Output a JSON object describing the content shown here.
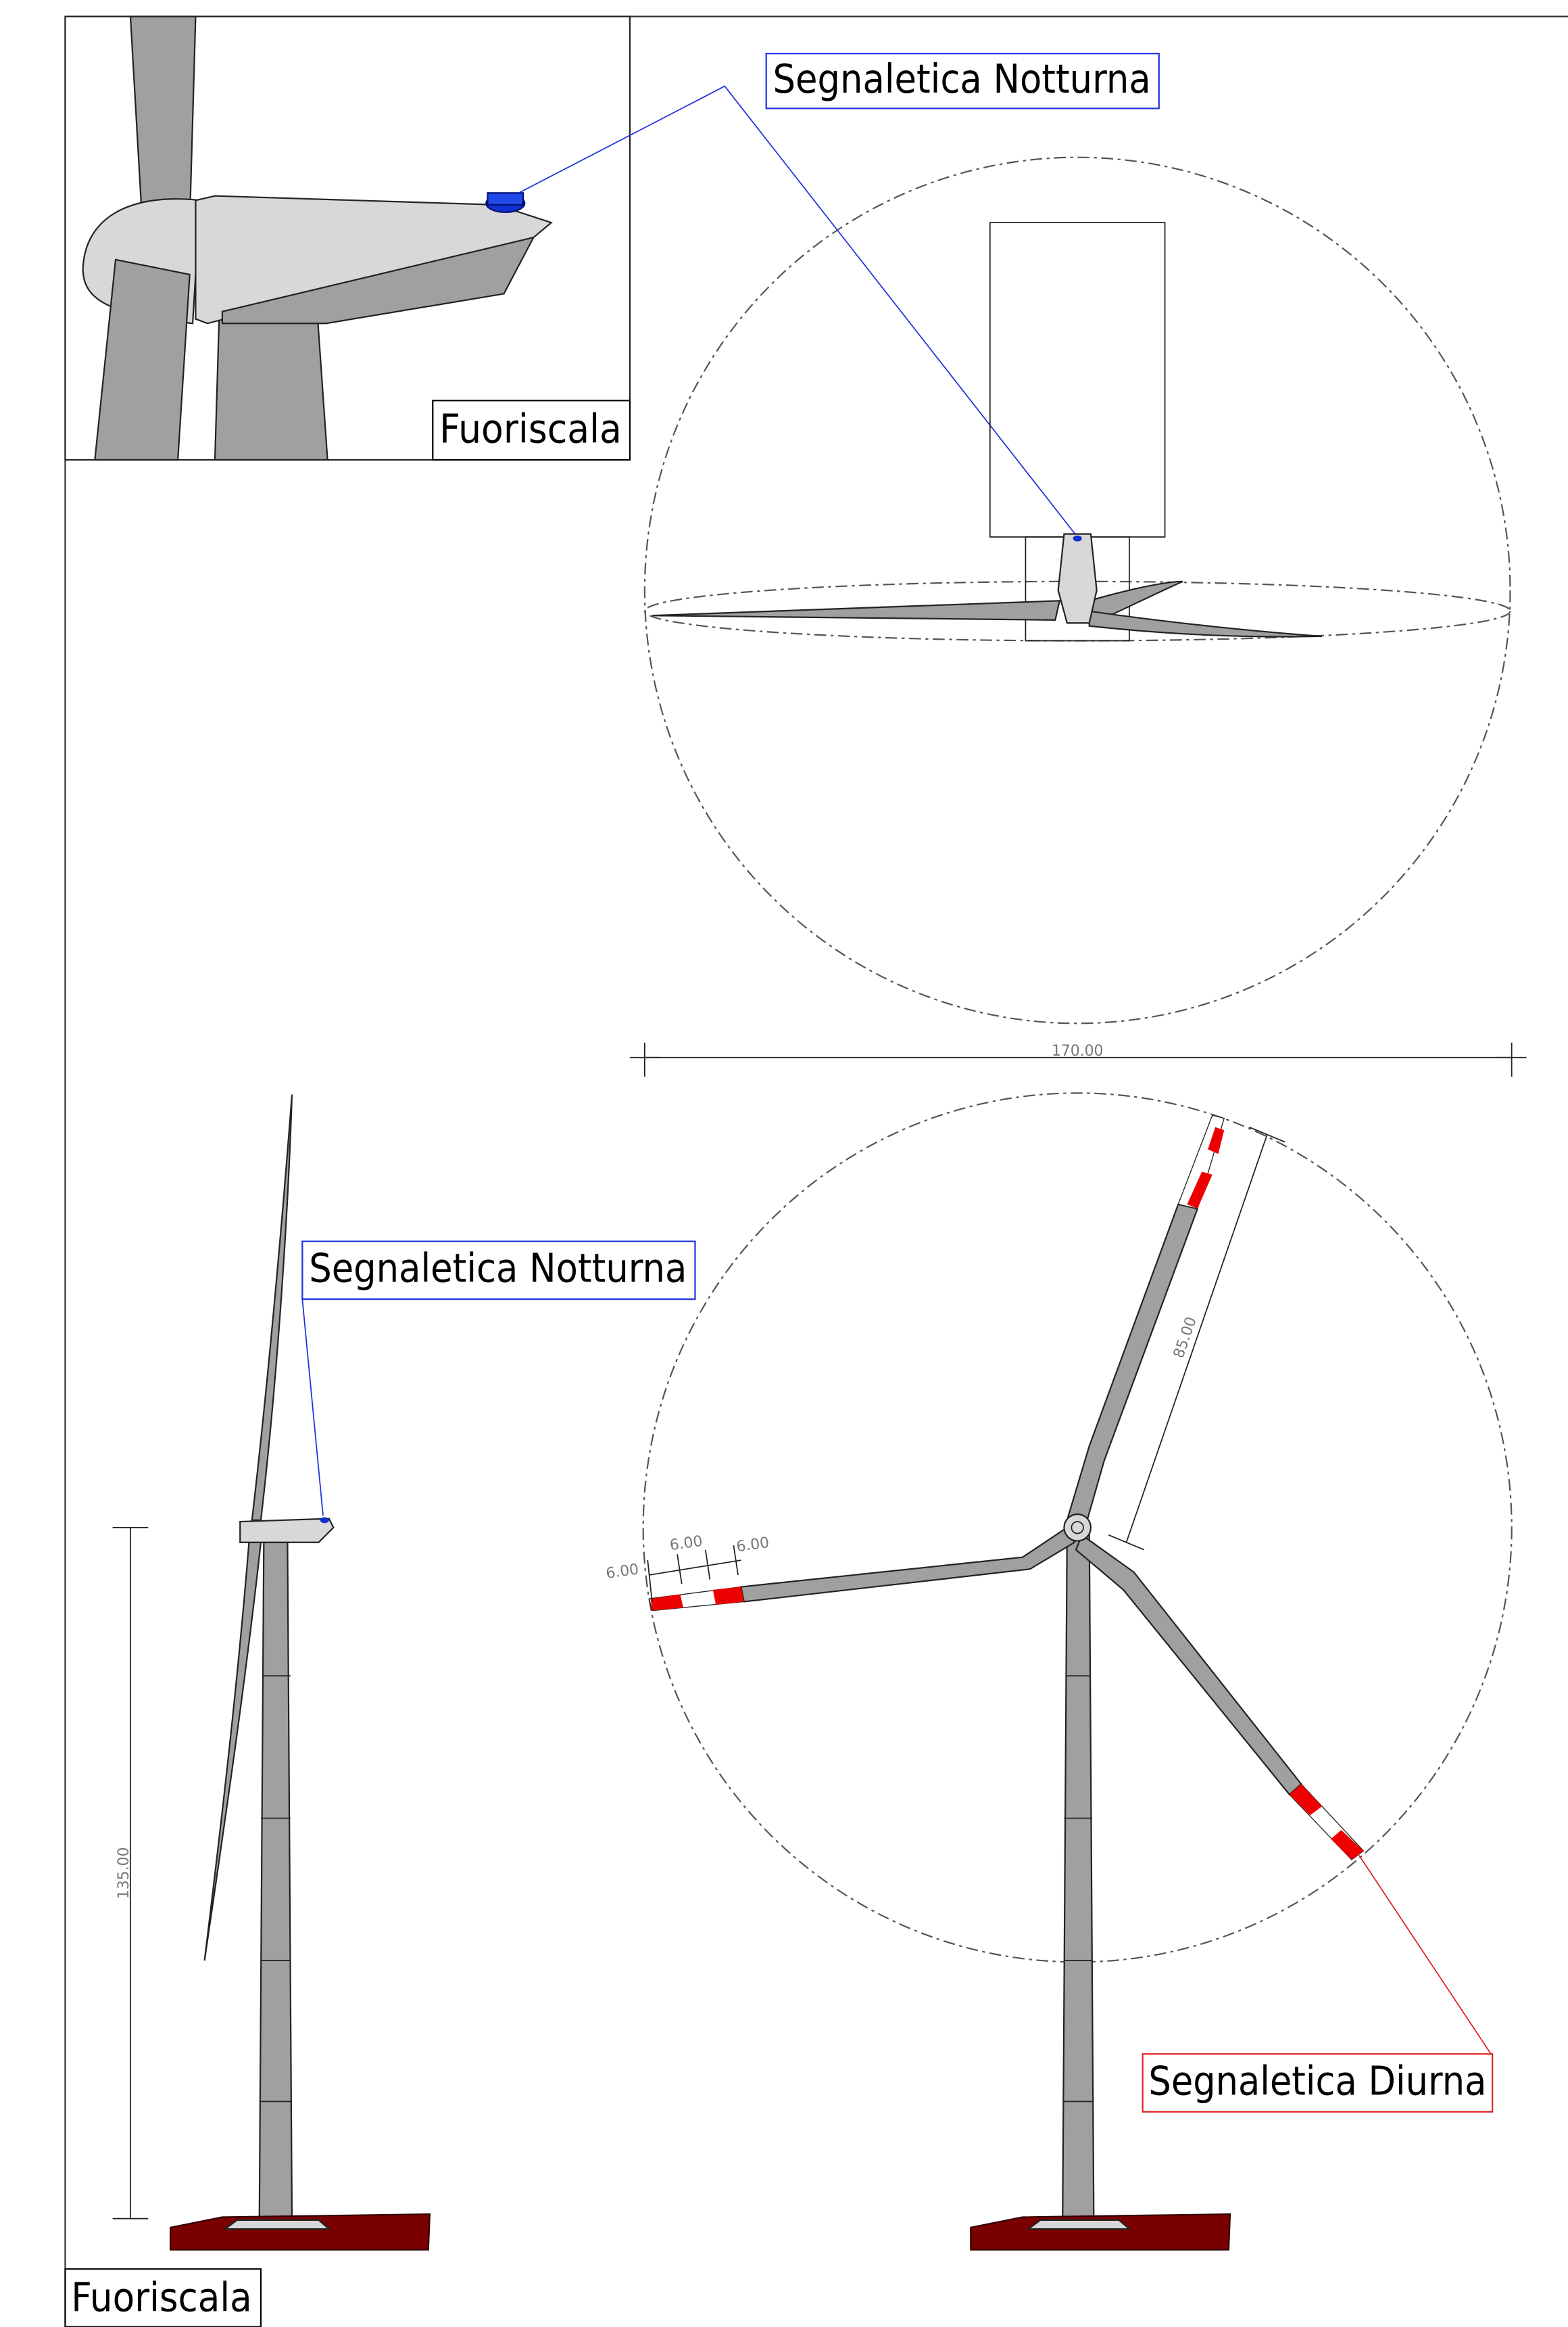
{
  "detail": {
    "callout": "Segnaletica Notturna",
    "label": "Fuoriscala"
  },
  "top_view": {
    "dimension": "170.00"
  },
  "side_view": {
    "callout": "Segnaletica Notturna",
    "dimension": "135.00",
    "label": "Fuoriscala"
  },
  "front_view": {
    "blade_length": "85.00",
    "marking_bands": [
      "6.00",
      "6.00",
      "6.00"
    ],
    "callout": "Segnaletica Diurna"
  }
}
